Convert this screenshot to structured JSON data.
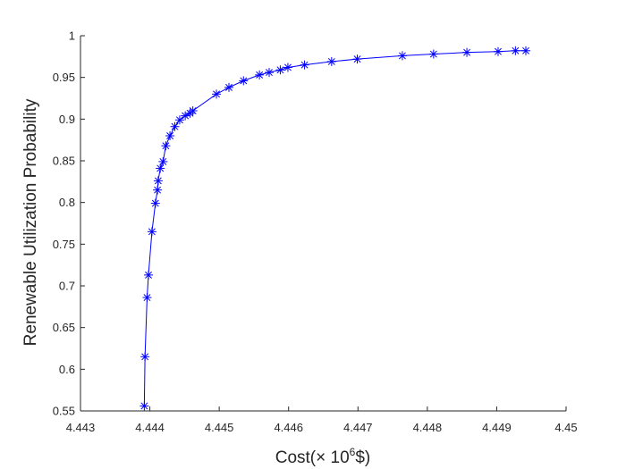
{
  "chart_data": {
    "type": "line",
    "title": "",
    "xlabel": "Cost(× 10^6$)",
    "xlabel_parts": {
      "prefix": "Cost(",
      "times": "×",
      "base": " 10",
      "exp": "6",
      "suffix": "$)"
    },
    "ylabel": "Renewable Utilization Probability",
    "xlim": [
      4.443,
      4.45
    ],
    "ylim": [
      0.55,
      1
    ],
    "xticks": [
      "4.443",
      "4.444",
      "4.445",
      "4.446",
      "4.447",
      "4.448",
      "4.449",
      "4.45"
    ],
    "yticks": [
      "0.55",
      "0.6",
      "0.65",
      "0.7",
      "0.75",
      "0.8",
      "0.85",
      "0.9",
      "0.95",
      "1"
    ],
    "marker": "*",
    "series_color": "#0000ff",
    "axis_color": "#262626",
    "grid": false,
    "series": [
      {
        "x": [
          4.44392,
          4.44393,
          4.44396,
          4.44398,
          4.44403,
          4.44408,
          4.44411,
          4.44412,
          4.44415,
          4.44419,
          4.44423,
          4.44429,
          4.44436,
          4.44443,
          4.44451,
          4.44458,
          4.44462,
          4.44496,
          4.44514,
          4.44535,
          4.44558,
          4.44572,
          4.44588,
          4.44599,
          4.44623,
          4.44662,
          4.44699,
          4.44764,
          4.44809,
          4.44857,
          4.44902,
          4.44927,
          4.44942
        ],
        "y": [
          0.556,
          0.615,
          0.686,
          0.713,
          0.765,
          0.799,
          0.815,
          0.826,
          0.841,
          0.849,
          0.868,
          0.88,
          0.891,
          0.899,
          0.904,
          0.907,
          0.91,
          0.93,
          0.938,
          0.946,
          0.953,
          0.956,
          0.959,
          0.962,
          0.965,
          0.969,
          0.972,
          0.976,
          0.978,
          0.98,
          0.981,
          0.982,
          0.982
        ]
      }
    ]
  }
}
